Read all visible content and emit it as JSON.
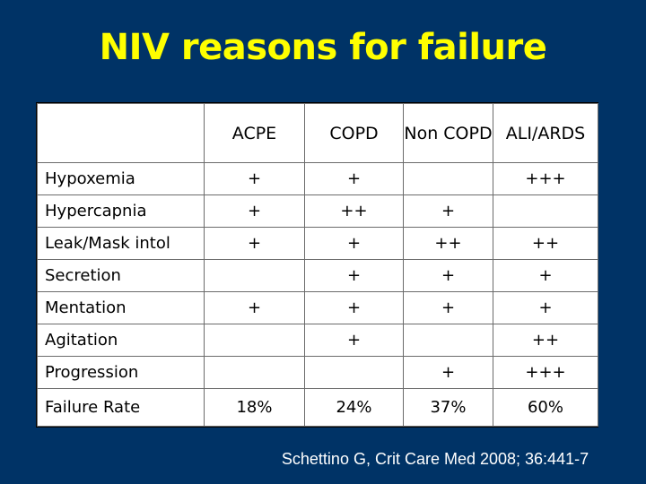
{
  "title": "NIV reasons for failure",
  "columns": [
    "ACPE",
    "COPD",
    "Non COPD",
    "ALI/ARDS"
  ],
  "rows": [
    {
      "label": "Hypoxemia",
      "cells": [
        "+",
        "+",
        "",
        "+++"
      ]
    },
    {
      "label": "Hypercapnia",
      "cells": [
        "+",
        "++",
        "+",
        ""
      ]
    },
    {
      "label": "Leak/Mask intol",
      "cells": [
        "+",
        "+",
        "++",
        "++"
      ]
    },
    {
      "label": "Secretion",
      "cells": [
        "",
        "+",
        "+",
        "+"
      ]
    },
    {
      "label": "Mentation",
      "cells": [
        "+",
        "+",
        "+",
        "+"
      ]
    },
    {
      "label": "Agitation",
      "cells": [
        "",
        "+",
        "",
        "++"
      ]
    },
    {
      "label": "Progression",
      "cells": [
        "",
        "",
        "+",
        "+++"
      ]
    },
    {
      "label": "Failure Rate",
      "cells": [
        "18%",
        "24%",
        "37%",
        "60%"
      ]
    }
  ],
  "citation": "Schettino G, Crit Care Med 2008; 36:441-7",
  "colors": {
    "background": "#003366",
    "title": "#FFFF00",
    "table_bg": "#FFFFFF",
    "citation": "#FFFFFF"
  }
}
